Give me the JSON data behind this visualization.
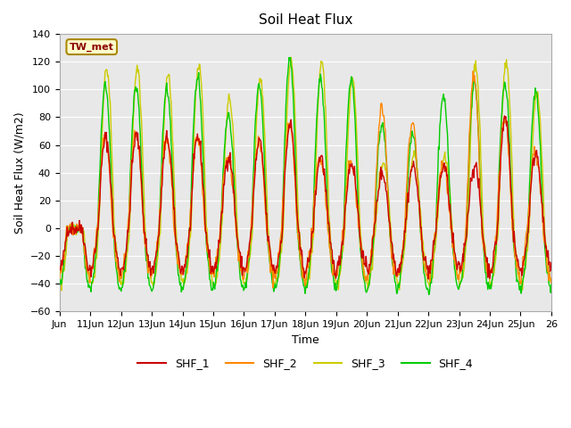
{
  "title": "Soil Heat Flux",
  "xlabel": "Time",
  "ylabel": "Soil Heat Flux (W/m2)",
  "ylim": [
    -60,
    140
  ],
  "yticks": [
    -60,
    -40,
    -20,
    0,
    20,
    40,
    60,
    80,
    100,
    120,
    140
  ],
  "x_tick_positions": [
    0,
    1,
    2,
    3,
    4,
    5,
    6,
    7,
    8,
    9,
    10,
    11,
    12,
    13,
    14,
    15,
    16
  ],
  "x_labels": [
    "Jun",
    "11Jun",
    "12Jun",
    "13Jun",
    "14Jun",
    "15Jun",
    "16Jun",
    "17Jun",
    "18Jun",
    "19Jun",
    "20Jun",
    "21Jun",
    "22Jun",
    "23Jun",
    "24Jun",
    "25Jun",
    "26"
  ],
  "series_colors": {
    "SHF_1": "#cc0000",
    "SHF_2": "#ff8800",
    "SHF_3": "#cccc00",
    "SHF_4": "#00cc00"
  },
  "legend_label": "TW_met",
  "plot_bg_color": "#e8e8e8",
  "n_days": 16,
  "points_per_day": 48
}
